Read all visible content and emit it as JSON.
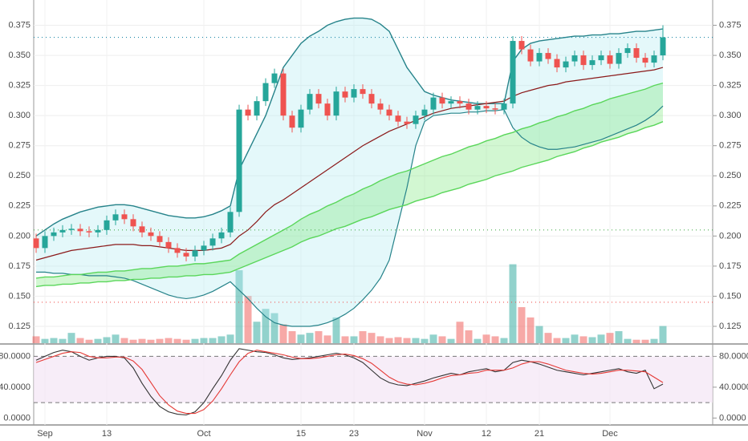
{
  "chart_data": [
    {
      "type": "candlestick",
      "categories": [
        null,
        "Sep",
        null,
        null,
        null,
        null,
        null,
        null,
        "13",
        null,
        null,
        null,
        null,
        null,
        null,
        null,
        null,
        null,
        null,
        "Oct",
        null,
        null,
        null,
        null,
        null,
        null,
        null,
        null,
        null,
        null,
        "15",
        null,
        null,
        null,
        null,
        null,
        "23",
        null,
        null,
        null,
        null,
        null,
        null,
        null,
        "Nov",
        null,
        null,
        null,
        null,
        null,
        null,
        "12",
        null,
        null,
        null,
        null,
        null,
        "21",
        null,
        null,
        null,
        null,
        null,
        null,
        null,
        "Dec",
        null,
        null,
        null,
        null,
        null,
        null
      ],
      "open": [
        0.198,
        0.19,
        0.2,
        0.203,
        0.205,
        0.206,
        0.204,
        0.203,
        0.205,
        0.213,
        0.218,
        0.214,
        0.208,
        0.203,
        0.2,
        0.195,
        0.19,
        0.186,
        0.183,
        0.188,
        0.192,
        0.198,
        0.203,
        0.22,
        0.305,
        0.3,
        0.312,
        0.327,
        0.335,
        0.3,
        0.29,
        0.305,
        0.318,
        0.31,
        0.3,
        0.32,
        0.315,
        0.322,
        0.318,
        0.31,
        0.305,
        0.3,
        0.295,
        0.293,
        0.3,
        0.305,
        0.315,
        0.31,
        0.312,
        0.31,
        0.305,
        0.308,
        0.306,
        0.305,
        0.31,
        0.362,
        0.355,
        0.345,
        0.352,
        0.347,
        0.34,
        0.345,
        0.35,
        0.342,
        0.346,
        0.35,
        0.343,
        0.352,
        0.356,
        0.348,
        0.344,
        0.35
      ],
      "high": [
        0.202,
        0.204,
        0.207,
        0.209,
        0.21,
        0.21,
        0.208,
        0.209,
        0.217,
        0.222,
        0.222,
        0.218,
        0.212,
        0.207,
        0.204,
        0.199,
        0.194,
        0.19,
        0.192,
        0.196,
        0.202,
        0.207,
        0.224,
        0.309,
        0.309,
        0.316,
        0.331,
        0.339,
        0.339,
        0.304,
        0.309,
        0.322,
        0.322,
        0.314,
        0.324,
        0.324,
        0.326,
        0.326,
        0.322,
        0.314,
        0.309,
        0.304,
        0.299,
        0.304,
        0.309,
        0.319,
        0.319,
        0.316,
        0.316,
        0.314,
        0.312,
        0.312,
        0.31,
        0.314,
        0.366,
        0.366,
        0.359,
        0.356,
        0.356,
        0.351,
        0.349,
        0.354,
        0.354,
        0.35,
        0.354,
        0.354,
        0.356,
        0.36,
        0.36,
        0.352,
        0.354,
        0.375
      ],
      "low": [
        0.186,
        0.186,
        0.196,
        0.199,
        0.201,
        0.2,
        0.199,
        0.199,
        0.201,
        0.209,
        0.21,
        0.204,
        0.199,
        0.196,
        0.191,
        0.186,
        0.182,
        0.179,
        0.179,
        0.184,
        0.188,
        0.194,
        0.199,
        0.216,
        0.296,
        0.296,
        0.308,
        0.323,
        0.296,
        0.286,
        0.286,
        0.301,
        0.306,
        0.296,
        0.296,
        0.311,
        0.311,
        0.314,
        0.306,
        0.301,
        0.296,
        0.291,
        0.289,
        0.289,
        0.296,
        0.301,
        0.306,
        0.306,
        0.306,
        0.301,
        0.301,
        0.302,
        0.301,
        0.301,
        0.306,
        0.351,
        0.341,
        0.341,
        0.343,
        0.336,
        0.336,
        0.341,
        0.338,
        0.338,
        0.342,
        0.339,
        0.339,
        0.348,
        0.344,
        0.34,
        0.34,
        0.346
      ],
      "close": [
        0.19,
        0.2,
        0.203,
        0.205,
        0.206,
        0.204,
        0.203,
        0.205,
        0.213,
        0.218,
        0.214,
        0.208,
        0.203,
        0.2,
        0.195,
        0.19,
        0.186,
        0.183,
        0.188,
        0.192,
        0.198,
        0.203,
        0.22,
        0.305,
        0.3,
        0.312,
        0.327,
        0.335,
        0.3,
        0.29,
        0.305,
        0.318,
        0.31,
        0.3,
        0.32,
        0.315,
        0.322,
        0.318,
        0.31,
        0.305,
        0.3,
        0.295,
        0.293,
        0.3,
        0.305,
        0.315,
        0.31,
        0.312,
        0.31,
        0.305,
        0.308,
        0.306,
        0.305,
        0.31,
        0.362,
        0.355,
        0.345,
        0.352,
        0.347,
        0.34,
        0.345,
        0.35,
        0.342,
        0.346,
        0.35,
        0.343,
        0.352,
        0.356,
        0.348,
        0.344,
        0.35,
        0.365
      ],
      "volume": [
        8,
        5,
        6,
        5,
        12,
        6,
        4,
        5,
        7,
        10,
        6,
        4,
        5,
        4,
        5,
        6,
        5,
        4,
        5,
        6,
        6,
        8,
        10,
        85,
        55,
        25,
        40,
        35,
        22,
        14,
        10,
        12,
        14,
        9,
        30,
        8,
        8,
        14,
        12,
        8,
        6,
        7,
        6,
        6,
        5,
        10,
        8,
        5,
        25,
        15,
        5,
        10,
        8,
        6,
        92,
        42,
        30,
        20,
        12,
        6,
        6,
        10,
        8,
        7,
        10,
        12,
        14,
        5,
        4,
        4,
        5,
        20
      ],
      "vlim": [
        0,
        400
      ],
      "up_color": "#26a69a",
      "down_color": "#ef5350",
      "series": [
        {
          "color": "#26838a",
          "band_fill": "#b2ebf2",
          "values": [
            0.2,
            0.205,
            0.21,
            0.214,
            0.217,
            0.22,
            0.222,
            0.224,
            0.225,
            0.226,
            0.226,
            0.225,
            0.223,
            0.221,
            0.219,
            0.217,
            0.216,
            0.215,
            0.215,
            0.216,
            0.218,
            0.221,
            0.225,
            0.255,
            0.27,
            0.285,
            0.3,
            0.32,
            0.34,
            0.35,
            0.36,
            0.366,
            0.37,
            0.375,
            0.378,
            0.38,
            0.381,
            0.381,
            0.38,
            0.376,
            0.37,
            0.355,
            0.34,
            0.33,
            0.32,
            0.317,
            0.315,
            0.313,
            0.312,
            0.311,
            0.31,
            0.31,
            0.31,
            0.31,
            0.345,
            0.355,
            0.36,
            0.362,
            0.363,
            0.364,
            0.365,
            0.366,
            0.366,
            0.367,
            0.367,
            0.368,
            0.368,
            0.369,
            0.37,
            0.37,
            0.371,
            0.372
          ]
        },
        {
          "color": "#26838a",
          "values": [
            0.17,
            0.17,
            0.169,
            0.169,
            0.168,
            0.168,
            0.167,
            0.167,
            0.167,
            0.166,
            0.165,
            0.163,
            0.16,
            0.157,
            0.154,
            0.151,
            0.149,
            0.148,
            0.149,
            0.151,
            0.154,
            0.158,
            0.162,
            0.155,
            0.148,
            0.14,
            0.133,
            0.128,
            0.126,
            0.125,
            0.125,
            0.125,
            0.126,
            0.128,
            0.131,
            0.135,
            0.14,
            0.147,
            0.155,
            0.165,
            0.18,
            0.21,
            0.24,
            0.275,
            0.295,
            0.3,
            0.301,
            0.302,
            0.302,
            0.303,
            0.303,
            0.304,
            0.304,
            0.305,
            0.29,
            0.282,
            0.277,
            0.274,
            0.272,
            0.272,
            0.273,
            0.274,
            0.276,
            0.278,
            0.28,
            0.283,
            0.286,
            0.289,
            0.292,
            0.296,
            0.301,
            0.308
          ]
        },
        {
          "color": "#8b1a1a",
          "values": [
            0.18,
            0.182,
            0.184,
            0.186,
            0.188,
            0.189,
            0.19,
            0.191,
            0.192,
            0.193,
            0.193,
            0.193,
            0.192,
            0.192,
            0.191,
            0.19,
            0.189,
            0.188,
            0.188,
            0.188,
            0.189,
            0.19,
            0.193,
            0.2,
            0.205,
            0.212,
            0.22,
            0.226,
            0.23,
            0.235,
            0.24,
            0.245,
            0.25,
            0.255,
            0.26,
            0.265,
            0.27,
            0.275,
            0.279,
            0.283,
            0.287,
            0.29,
            0.293,
            0.296,
            0.299,
            0.302,
            0.304,
            0.306,
            0.307,
            0.308,
            0.309,
            0.31,
            0.311,
            0.312,
            0.316,
            0.319,
            0.321,
            0.323,
            0.325,
            0.326,
            0.328,
            0.329,
            0.33,
            0.331,
            0.332,
            0.333,
            0.334,
            0.335,
            0.336,
            0.337,
            0.338,
            0.34
          ]
        },
        {
          "color": "#5ad65a",
          "band_fill": "#7ee87e",
          "values": [
            0.165,
            0.166,
            0.166,
            0.167,
            0.168,
            0.168,
            0.169,
            0.17,
            0.17,
            0.171,
            0.171,
            0.172,
            0.173,
            0.173,
            0.174,
            0.175,
            0.175,
            0.176,
            0.177,
            0.177,
            0.178,
            0.179,
            0.18,
            0.185,
            0.189,
            0.193,
            0.197,
            0.201,
            0.205,
            0.209,
            0.214,
            0.218,
            0.221,
            0.225,
            0.228,
            0.232,
            0.235,
            0.239,
            0.242,
            0.246,
            0.249,
            0.252,
            0.254,
            0.257,
            0.26,
            0.263,
            0.266,
            0.268,
            0.271,
            0.274,
            0.276,
            0.279,
            0.281,
            0.284,
            0.286,
            0.289,
            0.291,
            0.294,
            0.296,
            0.299,
            0.301,
            0.304,
            0.306,
            0.309,
            0.311,
            0.314,
            0.316,
            0.318,
            0.32,
            0.322,
            0.325,
            0.327
          ]
        },
        {
          "color": "#5ad65a",
          "values": [
            0.158,
            0.159,
            0.159,
            0.16,
            0.16,
            0.161,
            0.161,
            0.162,
            0.162,
            0.163,
            0.163,
            0.164,
            0.164,
            0.165,
            0.165,
            0.166,
            0.166,
            0.167,
            0.167,
            0.168,
            0.168,
            0.169,
            0.17,
            0.173,
            0.176,
            0.179,
            0.182,
            0.185,
            0.188,
            0.191,
            0.195,
            0.198,
            0.2,
            0.203,
            0.206,
            0.208,
            0.211,
            0.214,
            0.216,
            0.219,
            0.222,
            0.224,
            0.226,
            0.229,
            0.231,
            0.233,
            0.236,
            0.238,
            0.24,
            0.243,
            0.245,
            0.247,
            0.25,
            0.252,
            0.254,
            0.257,
            0.259,
            0.261,
            0.263,
            0.266,
            0.268,
            0.27,
            0.273,
            0.275,
            0.278,
            0.28,
            0.282,
            0.285,
            0.287,
            0.29,
            0.292,
            0.295
          ]
        }
      ],
      "hlines": [
        {
          "value": 0.365,
          "color": "#1e88a8"
        },
        {
          "value": 0.205,
          "color": "#4caf50"
        },
        {
          "value": 0.145,
          "color": "#ef5350"
        }
      ],
      "ylim": [
        0.111,
        0.396
      ],
      "yticks": [
        0.125,
        {
          "value": 0.15,
          "label": "0.150"
        },
        0.175,
        {
          "value": 0.2,
          "label": "0.200"
        },
        0.225,
        {
          "value": 0.25,
          "label": "0.250"
        },
        0.275,
        {
          "value": 0.3,
          "label": "0.300"
        },
        0.325,
        {
          "value": 0.35,
          "label": "0.350"
        },
        0.375
      ],
      "grid": true
    },
    {
      "type": "line",
      "series": [
        {
          "color": "#333333",
          "values": [
            75,
            80,
            85,
            88,
            86,
            80,
            75,
            78,
            80,
            80,
            78,
            65,
            45,
            28,
            15,
            8,
            5,
            4,
            8,
            20,
            38,
            55,
            75,
            90,
            88,
            86,
            85,
            82,
            78,
            76,
            77,
            78,
            80,
            82,
            84,
            82,
            78,
            72,
            62,
            52,
            46,
            43,
            42,
            45,
            48,
            52,
            55,
            58,
            56,
            60,
            62,
            64,
            60,
            62,
            72,
            75,
            73,
            70,
            66,
            62,
            60,
            58,
            56,
            58,
            60,
            62,
            64,
            60,
            58,
            62,
            38,
            44
          ]
        },
        {
          "color": "#e53935",
          "values": [
            72,
            76,
            80,
            84,
            86,
            85,
            80,
            78,
            78,
            79,
            79,
            74,
            63,
            46,
            29,
            17,
            9,
            6,
            6,
            11,
            22,
            38,
            56,
            73,
            84,
            88,
            86,
            84,
            82,
            79,
            77,
            77,
            78,
            80,
            82,
            83,
            81,
            77,
            71,
            62,
            53,
            47,
            44,
            43,
            45,
            48,
            52,
            55,
            56,
            58,
            59,
            62,
            62,
            62,
            65,
            70,
            73,
            73,
            70,
            66,
            62,
            60,
            58,
            57,
            58,
            60,
            62,
            62,
            61,
            60,
            53,
            46
          ]
        }
      ],
      "levels": [
        80,
        20
      ],
      "ylim": [
        -9,
        95
      ],
      "yticks": [
        {
          "value": 0,
          "label": "0.0000"
        },
        {
          "value": 40,
          "label": "40.0000"
        },
        {
          "value": 80,
          "label": "80.0000"
        }
      ]
    }
  ]
}
